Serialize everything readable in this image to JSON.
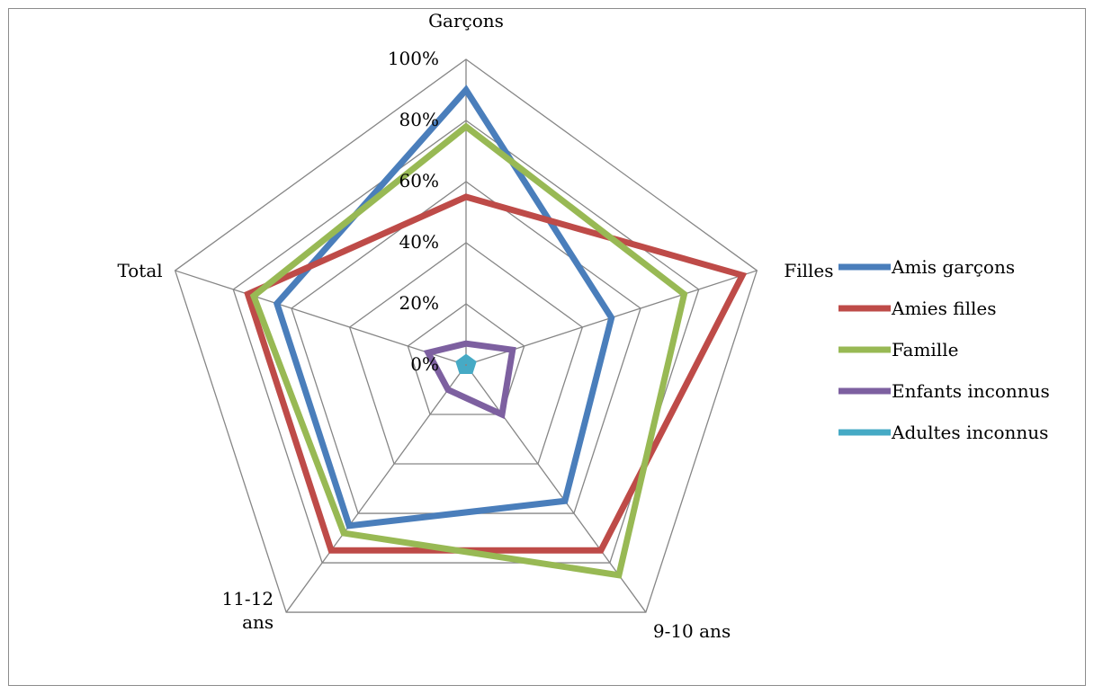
{
  "chart_data": {
    "type": "radar",
    "axes": [
      "Garçons",
      "Filles",
      "9-10 ans",
      "11-12 ans",
      "Total"
    ],
    "axis_label_lines": [
      [
        "Garçons"
      ],
      [
        "Filles"
      ],
      [
        "9-10 ans"
      ],
      [
        "11-12",
        "ans"
      ],
      [
        "Total"
      ]
    ],
    "ticks": [
      "0%",
      "20%",
      "40%",
      "60%",
      "80%",
      "100%"
    ],
    "rmax": 100,
    "grid_levels": [
      0.2,
      0.4,
      0.6,
      0.8,
      1.0
    ],
    "series": [
      {
        "name": "Amis garçons",
        "color": "#4a7ebb",
        "values": [
          90,
          50,
          55,
          65,
          65
        ]
      },
      {
        "name": "Amies filles",
        "color": "#be4b48",
        "values": [
          55,
          95,
          75,
          75,
          75
        ]
      },
      {
        "name": "Famille",
        "color": "#98b954",
        "values": [
          78,
          75,
          85,
          68,
          73
        ]
      },
      {
        "name": "Enfants inconnus",
        "color": "#7d60a0",
        "values": [
          7,
          16,
          20,
          10,
          13
        ]
      },
      {
        "name": "Adultes inconnus",
        "color": "#46aac5",
        "values": [
          2,
          2,
          2,
          2,
          2
        ]
      }
    ],
    "grid": true,
    "legend": "right"
  }
}
